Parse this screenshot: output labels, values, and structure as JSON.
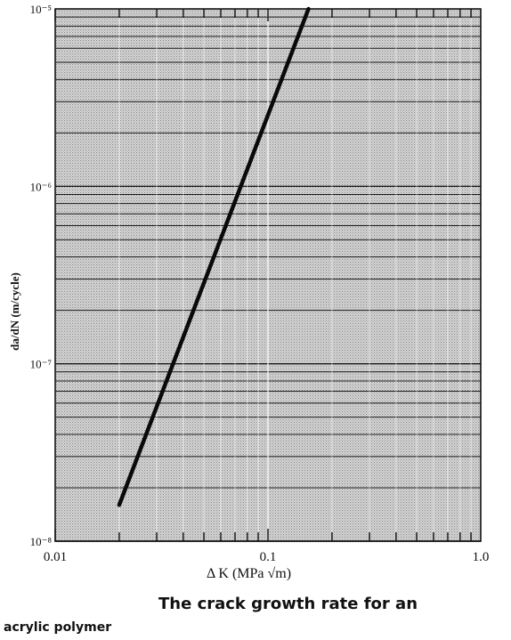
{
  "chart_data": {
    "type": "line",
    "title": "",
    "xlabel": "Δ K (MPa √m)",
    "ylabel": "da/dN (m/cycle)",
    "x_scale": "log",
    "y_scale": "log",
    "xlim": [
      0.01,
      1.0
    ],
    "ylim": [
      1e-08,
      1e-05
    ],
    "x_ticks": [
      "0.01",
      "0.1",
      "1.0"
    ],
    "y_ticks": [
      "10⁻⁸",
      "10⁻⁷",
      "10⁻⁶",
      "10⁻⁵"
    ],
    "grid": true,
    "series": [
      {
        "x": [
          0.02,
          0.155
        ],
        "y": [
          1.6e-08,
          1e-05
        ]
      }
    ]
  },
  "caption": {
    "line1": "The crack growth rate for an",
    "line2": "acrylic polymer"
  },
  "colors": {
    "plot_background": "#c8c8c8",
    "grid": "#1a1a1a",
    "series": "#0a0a0a"
  }
}
